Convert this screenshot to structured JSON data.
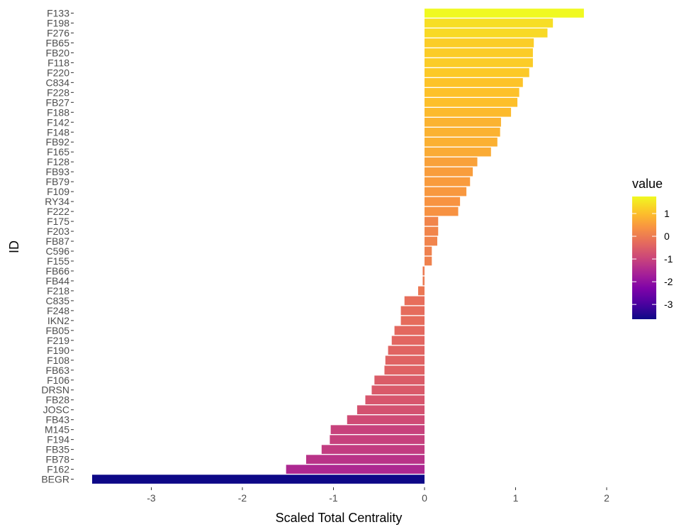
{
  "chart_data": {
    "type": "bar",
    "orientation": "horizontal",
    "xlabel": "Scaled Total Centrality",
    "ylabel": "ID",
    "xlim": [
      -3.65,
      2.0
    ],
    "xticks": [
      -3,
      -2,
      -1,
      0,
      1,
      2
    ],
    "grid": false,
    "legend_position": "right",
    "legend": {
      "title": "value",
      "ticks": [
        1,
        0,
        -1,
        -2,
        -3
      ],
      "range": [
        -3.65,
        1.75
      ]
    },
    "colormap": "plasma",
    "categories": [
      "F133",
      "F198",
      "F276",
      "FB65",
      "FB20",
      "F118",
      "F220",
      "C834",
      "F228",
      "FB27",
      "F188",
      "F142",
      "F148",
      "FB92",
      "F165",
      "F128",
      "FB93",
      "FB79",
      "F109",
      "RY34",
      "F222",
      "F175",
      "F203",
      "FB87",
      "C596",
      "F155",
      "FB66",
      "FB44",
      "F218",
      "C835",
      "F248",
      "IKN2",
      "FB05",
      "F219",
      "F190",
      "F108",
      "FB63",
      "F106",
      "DRSN",
      "FB28",
      "JOSC",
      "FB43",
      "M145",
      "F194",
      "FB35",
      "FB78",
      "F162",
      "BEGR"
    ],
    "values": [
      1.75,
      1.41,
      1.35,
      1.2,
      1.19,
      1.19,
      1.15,
      1.08,
      1.04,
      1.02,
      0.95,
      0.84,
      0.83,
      0.8,
      0.73,
      0.58,
      0.53,
      0.5,
      0.46,
      0.39,
      0.37,
      0.15,
      0.15,
      0.14,
      0.08,
      0.08,
      -0.02,
      -0.02,
      -0.07,
      -0.22,
      -0.26,
      -0.26,
      -0.33,
      -0.36,
      -0.4,
      -0.43,
      -0.44,
      -0.55,
      -0.58,
      -0.65,
      -0.74,
      -0.85,
      -1.03,
      -1.04,
      -1.13,
      -1.3,
      -1.52,
      -3.65
    ]
  }
}
